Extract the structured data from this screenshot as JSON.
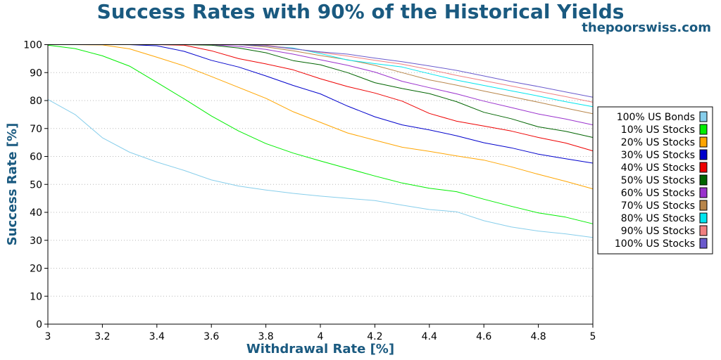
{
  "header": {
    "title": "Success Rates with 90% of the Historical Yields",
    "site": "thepoorswiss.com"
  },
  "chart_data": {
    "type": "line",
    "title": "Success Rates with 90% of the Historical Yields",
    "xlabel": "Withdrawal Rate [%]",
    "ylabel": "Success Rate [%]",
    "xlim": [
      3,
      5
    ],
    "ylim": [
      0,
      100
    ],
    "x_ticks": [
      "3",
      "3.2",
      "3.4",
      "3.6",
      "3.8",
      "4",
      "4.2",
      "4.4",
      "4.6",
      "4.8",
      "5"
    ],
    "y_ticks": [
      "0",
      "10",
      "20",
      "30",
      "40",
      "50",
      "60",
      "70",
      "80",
      "90",
      "100"
    ],
    "grid": "horizontal dotted",
    "legend_position": "right",
    "x": [
      3.0,
      3.1,
      3.2,
      3.3,
      3.4,
      3.5,
      3.6,
      3.7,
      3.8,
      3.9,
      4.0,
      4.1,
      4.2,
      4.3,
      4.4,
      4.5,
      4.6,
      4.7,
      4.8,
      4.9,
      5.0
    ],
    "series": [
      {
        "name": "100% US Bonds",
        "color": "#87ceeb",
        "values": [
          80.4,
          75.0,
          66.7,
          61.5,
          58.0,
          55.0,
          51.6,
          49.4,
          48.0,
          46.8,
          45.8,
          45.0,
          44.2,
          42.6,
          41.0,
          40.2,
          37.0,
          34.8,
          33.3,
          32.3,
          31.0
        ]
      },
      {
        "name": "10% US Stocks",
        "color": "#00ee00",
        "values": [
          99.8,
          98.6,
          96.0,
          92.3,
          86.5,
          80.6,
          74.5,
          69.1,
          64.6,
          61.2,
          58.4,
          55.7,
          53.0,
          50.5,
          48.6,
          47.4,
          44.7,
          42.2,
          39.8,
          38.3,
          35.9
        ]
      },
      {
        "name": "20% US Stocks",
        "color": "#ffa500",
        "values": [
          100.0,
          100.0,
          99.9,
          98.5,
          95.5,
          92.4,
          88.6,
          84.7,
          80.8,
          76.0,
          72.2,
          68.4,
          65.8,
          63.3,
          61.8,
          60.2,
          58.7,
          56.3,
          53.6,
          51.1,
          48.4
        ]
      },
      {
        "name": "30% US Stocks",
        "color": "#0000cc",
        "values": [
          100.0,
          100.0,
          100.0,
          100.0,
          99.6,
          97.6,
          94.4,
          92.0,
          88.8,
          85.4,
          82.4,
          78.0,
          74.2,
          71.3,
          69.5,
          67.4,
          64.9,
          63.1,
          60.8,
          59.2,
          57.6
        ]
      },
      {
        "name": "40% US Stocks",
        "color": "#ee0000",
        "values": [
          100.0,
          100.0,
          100.0,
          100.0,
          100.0,
          99.8,
          97.8,
          95.0,
          93.1,
          91.0,
          87.8,
          85.0,
          82.7,
          79.8,
          75.4,
          72.6,
          70.9,
          69.1,
          66.8,
          64.8,
          62.0
        ]
      },
      {
        "name": "50% US Stocks",
        "color": "#006400",
        "values": [
          100.0,
          100.0,
          100.0,
          100.0,
          100.0,
          100.0,
          99.8,
          98.8,
          97.1,
          94.3,
          92.8,
          90.0,
          86.4,
          84.3,
          82.5,
          79.6,
          75.8,
          73.5,
          70.6,
          69.0,
          66.8
        ]
      },
      {
        "name": "60% US Stocks",
        "color": "#9a32cd",
        "values": [
          100.0,
          100.0,
          100.0,
          100.0,
          100.0,
          100.0,
          100.0,
          99.4,
          98.3,
          96.6,
          94.6,
          92.6,
          90.2,
          86.9,
          84.6,
          82.4,
          79.8,
          77.5,
          75.2,
          73.4,
          71.3
        ]
      },
      {
        "name": "70% US Stocks",
        "color": "#b8864b",
        "values": [
          100.0,
          100.0,
          100.0,
          100.0,
          100.0,
          100.0,
          100.0,
          100.0,
          99.2,
          97.8,
          96.1,
          94.6,
          92.6,
          90.0,
          87.4,
          85.5,
          83.4,
          81.4,
          79.4,
          77.3,
          75.3
        ]
      },
      {
        "name": "80% US Stocks",
        "color": "#00e5ee",
        "values": [
          100.0,
          100.0,
          100.0,
          100.0,
          100.0,
          100.0,
          100.0,
          100.0,
          99.6,
          98.8,
          96.8,
          94.5,
          93.2,
          92.0,
          89.6,
          87.3,
          85.4,
          83.5,
          81.6,
          79.6,
          77.8
        ]
      },
      {
        "name": "90% US Stocks",
        "color": "#f08080",
        "values": [
          100.0,
          100.0,
          100.0,
          100.0,
          100.0,
          100.0,
          100.0,
          100.0,
          99.8,
          98.6,
          97.2,
          95.9,
          94.4,
          93.0,
          91.1,
          89.0,
          87.1,
          85.2,
          83.3,
          81.4,
          79.4
        ]
      },
      {
        "name": "100% US Stocks",
        "color": "#6a5acd",
        "values": [
          100.0,
          100.0,
          100.0,
          100.0,
          100.0,
          100.0,
          100.0,
          100.0,
          99.6,
          98.5,
          97.4,
          96.6,
          95.2,
          93.9,
          92.4,
          90.8,
          88.8,
          86.8,
          85.0,
          83.1,
          81.2
        ]
      }
    ]
  }
}
